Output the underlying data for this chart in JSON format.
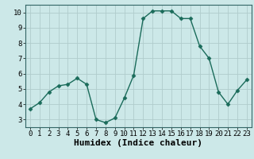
{
  "x": [
    0,
    1,
    2,
    3,
    4,
    5,
    6,
    7,
    8,
    9,
    10,
    11,
    12,
    13,
    14,
    15,
    16,
    17,
    18,
    19,
    20,
    21,
    22,
    23
  ],
  "y": [
    3.7,
    4.1,
    4.8,
    5.2,
    5.3,
    5.7,
    5.3,
    3.0,
    2.8,
    3.1,
    4.4,
    5.9,
    9.6,
    10.1,
    10.1,
    10.1,
    9.6,
    9.6,
    7.8,
    7.0,
    4.8,
    4.0,
    4.9,
    5.6
  ],
  "xlabel": "Humidex (Indice chaleur)",
  "ylim": [
    2.5,
    10.5
  ],
  "xlim": [
    -0.5,
    23.5
  ],
  "line_color": "#1a6b5a",
  "bg_color": "#cce8e8",
  "grid_color": "#b0cccc",
  "tick_label_fontsize": 6.5,
  "xlabel_fontsize": 8,
  "marker": "D",
  "marker_size": 2.5,
  "yticks": [
    3,
    4,
    5,
    6,
    7,
    8,
    9,
    10
  ],
  "xticks": [
    0,
    1,
    2,
    3,
    4,
    5,
    6,
    7,
    8,
    9,
    10,
    11,
    12,
    13,
    14,
    15,
    16,
    17,
    18,
    19,
    20,
    21,
    22,
    23
  ]
}
